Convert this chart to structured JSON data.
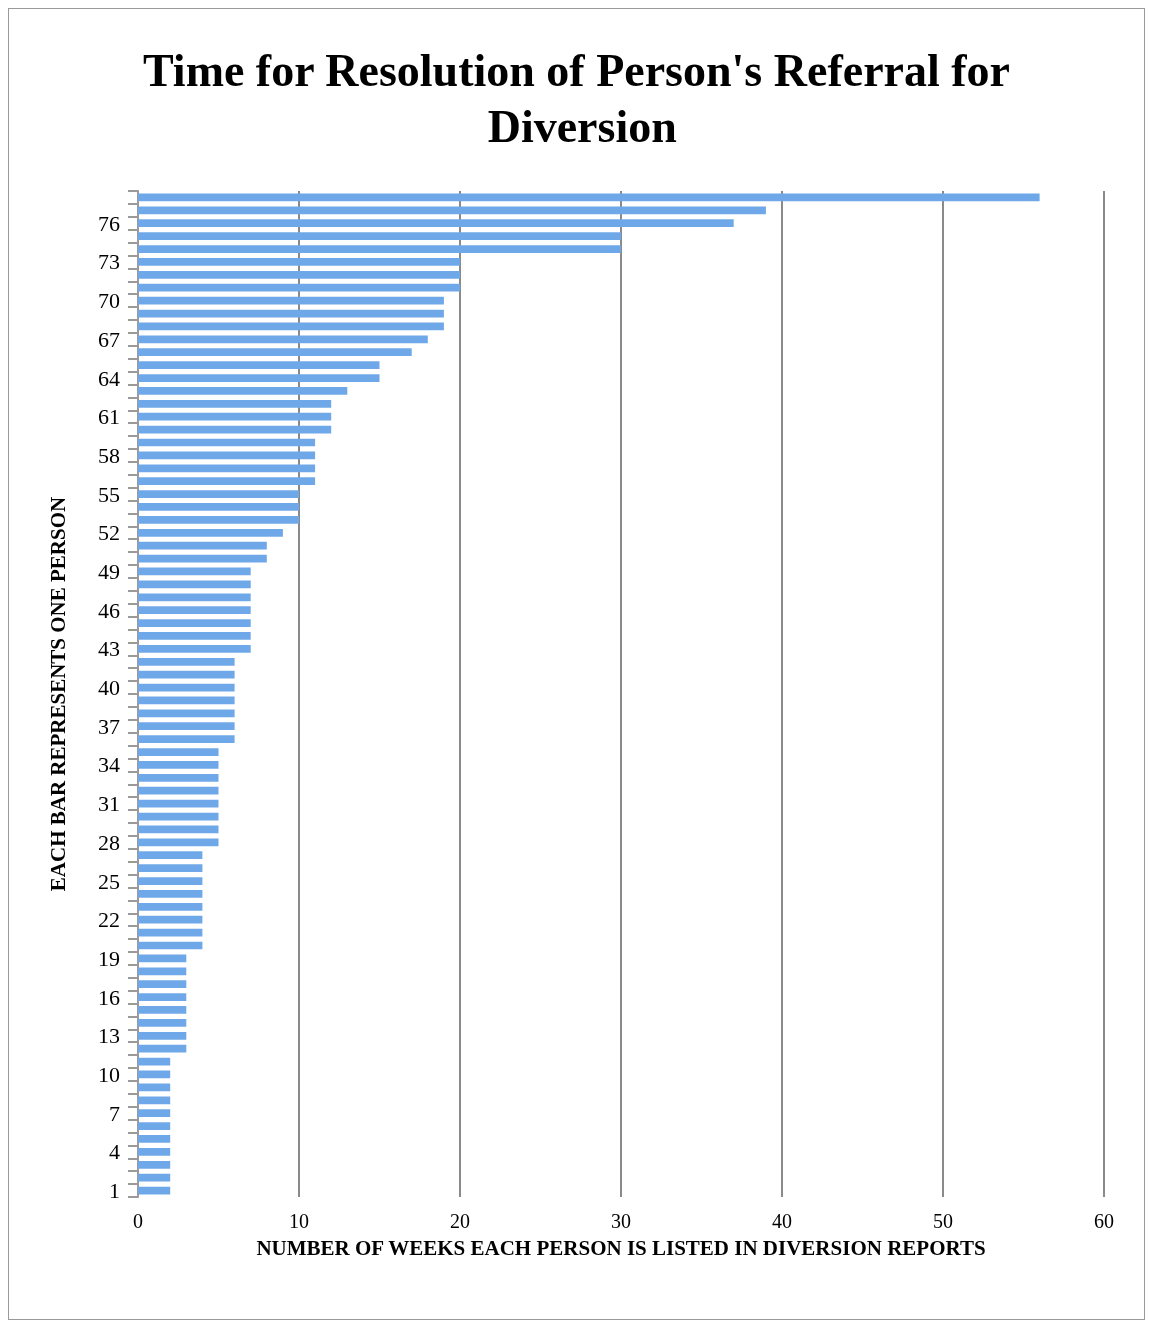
{
  "chart_data": {
    "type": "bar",
    "orientation": "horizontal",
    "title": "Time for Resolution of Person's Referral for Diversion",
    "xlabel": "NUMBER OF WEEKS EACH PERSON IS LISTED IN DIVERSION REPORTS",
    "ylabel": "EACH BAR REPRESENTS ONE PERSON",
    "categories": [
      null,
      null,
      "76",
      null,
      null,
      "73",
      null,
      null,
      "70",
      null,
      null,
      "67",
      null,
      null,
      "64",
      null,
      null,
      "61",
      null,
      null,
      "58",
      null,
      null,
      "55",
      null,
      null,
      "52",
      null,
      null,
      "49",
      null,
      null,
      "46",
      null,
      null,
      "43",
      null,
      null,
      "40",
      null,
      null,
      "37",
      null,
      null,
      "34",
      null,
      null,
      "31",
      null,
      null,
      "28",
      null,
      null,
      "25",
      null,
      null,
      "22",
      null,
      null,
      "19",
      null,
      null,
      "16",
      null,
      null,
      "13",
      null,
      null,
      "10",
      null,
      null,
      "7",
      null,
      null,
      "4",
      null,
      null,
      "1"
    ],
    "values": [
      56,
      39,
      37,
      30,
      30,
      20,
      20,
      20,
      19,
      19,
      19,
      18,
      17,
      15,
      15,
      13,
      12,
      12,
      12,
      11,
      11,
      11,
      11,
      10,
      10,
      10,
      9,
      8,
      8,
      7,
      7,
      7,
      7,
      7,
      7,
      7,
      6,
      6,
      6,
      6,
      6,
      6,
      6,
      5,
      5,
      5,
      5,
      5,
      5,
      5,
      5,
      4,
      4,
      4,
      4,
      4,
      4,
      4,
      4,
      3,
      3,
      3,
      3,
      3,
      3,
      3,
      3,
      2,
      2,
      2,
      2,
      2,
      2,
      2,
      2,
      2,
      2,
      2
    ],
    "color": "#6fa8e8",
    "xlim": [
      0,
      60
    ],
    "xticks": [
      0,
      10,
      20,
      30,
      40,
      50,
      60
    ],
    "grid": "x"
  }
}
